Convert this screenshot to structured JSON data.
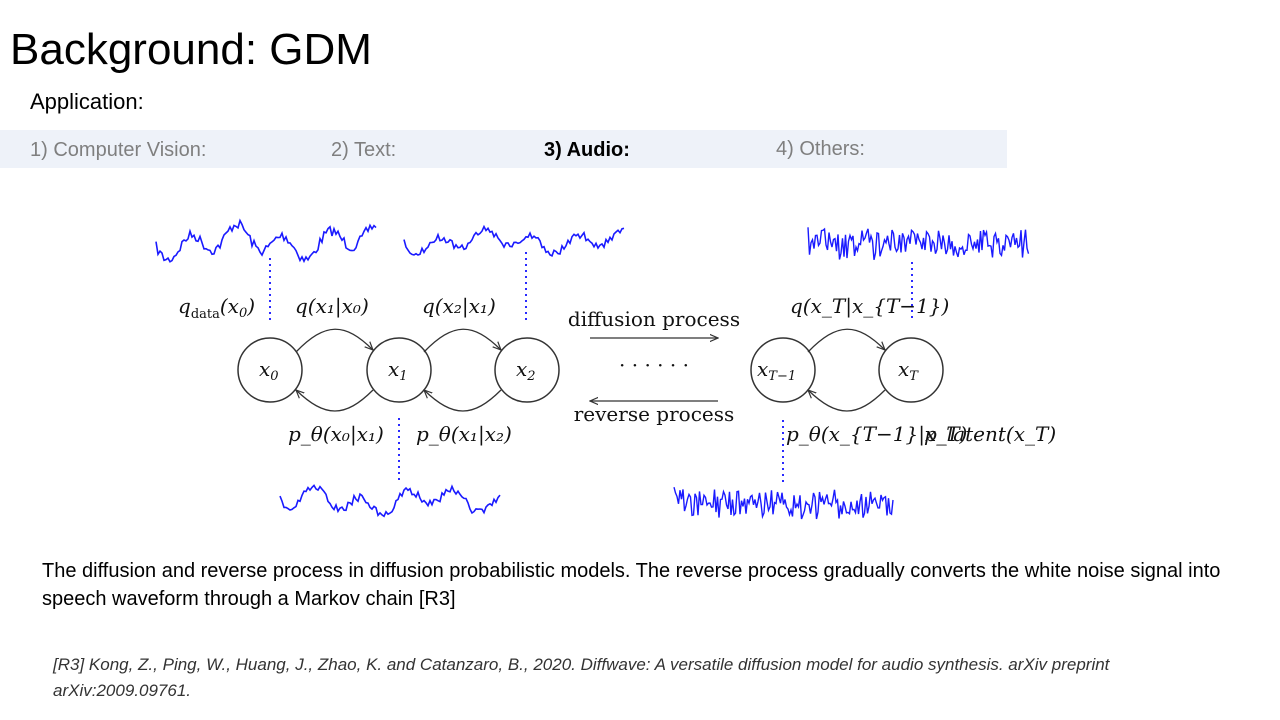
{
  "slide": {
    "title": "Background: GDM",
    "subtitle": "Application:"
  },
  "tabs": [
    {
      "label": "1) Computer Vision:",
      "active": false
    },
    {
      "label": "2) Text:",
      "active": false
    },
    {
      "label": "3) Audio:",
      "active": true
    },
    {
      "label": "4) Others:",
      "active": false
    }
  ],
  "diagram": {
    "nodes": {
      "x0": "x",
      "x0_sub": "0",
      "x1": "x",
      "x1_sub": "1",
      "x2": "x",
      "x2_sub": "2",
      "xT1": "x",
      "xT1_sub": "T−1",
      "xT": "x",
      "xT_sub": "T"
    },
    "arrows": {
      "diffusion": "diffusion process",
      "reverse": "reverse process",
      "ellipsis": "· · · · · ·"
    },
    "labels": {
      "q_data": "q",
      "q_data_sub": "data",
      "q_data_arg": "(x",
      "q_data_arg_sub": "0",
      "q_x1_x0": "q(x₁|x₀)",
      "q_x2_x1": "q(x₂|x₁)",
      "q_xT_xT1": "q(x_T|x_{T−1})",
      "p_x0_x1": "p_θ(x₀|x₁)",
      "p_x1_x2": "p_θ(x₁|x₂)",
      "p_xT1_xT": "p_θ(x_{T−1}|x_T)",
      "p_latent": "p_latent(x_T)"
    },
    "colors": {
      "waveform": "#1a1aff",
      "dotted": "#2a2aff",
      "stroke": "#333333"
    }
  },
  "caption": "The diffusion and reverse process in diffusion probabilistic models. The reverse process gradually converts the white noise signal into speech waveform through a Markov chain [R3]",
  "reference": "[R3] Kong, Z., Ping, W., Huang, J., Zhao, K. and Catanzaro, B., 2020. Diffwave: A versatile diffusion model for audio synthesis. arXiv preprint arXiv:2009.09761."
}
